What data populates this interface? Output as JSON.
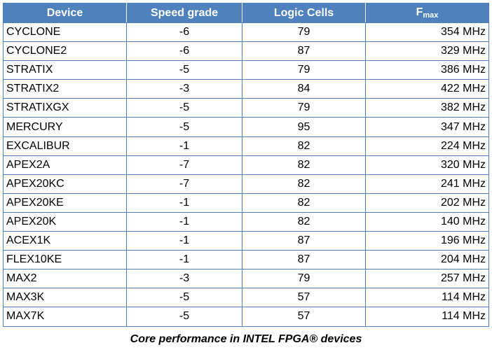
{
  "table": {
    "headers": {
      "device": "Device",
      "speed": "Speed grade",
      "cells": "Logic Cells",
      "fmax_main": "F",
      "fmax_sub": "max"
    },
    "rows": [
      {
        "device": "CYCLONE",
        "speed": "-6",
        "cells": "79",
        "fmax": "354 MHz"
      },
      {
        "device": "CYCLONE2",
        "speed": "-6",
        "cells": "87",
        "fmax": "329 MHz"
      },
      {
        "device": "STRATIX",
        "speed": "-5",
        "cells": "79",
        "fmax": "386 MHz"
      },
      {
        "device": "STRATIX2",
        "speed": "-3",
        "cells": "84",
        "fmax": "422 MHz"
      },
      {
        "device": "STRATIXGX",
        "speed": "-5",
        "cells": "79",
        "fmax": "382 MHz"
      },
      {
        "device": "MERCURY",
        "speed": "-5",
        "cells": "95",
        "fmax": "347 MHz"
      },
      {
        "device": "EXCALIBUR",
        "speed": "-1",
        "cells": "82",
        "fmax": "224 MHz"
      },
      {
        "device": "APEX2A",
        "speed": "-7",
        "cells": "82",
        "fmax": "320 MHz"
      },
      {
        "device": "APEX20KC",
        "speed": "-7",
        "cells": "82",
        "fmax": "241 MHz"
      },
      {
        "device": "APEX20KE",
        "speed": "-1",
        "cells": "82",
        "fmax": "202 MHz"
      },
      {
        "device": "APEX20K",
        "speed": "-1",
        "cells": "82",
        "fmax": "140 MHz"
      },
      {
        "device": "ACEX1K",
        "speed": "-1",
        "cells": "87",
        "fmax": "196 MHz"
      },
      {
        "device": "FLEX10KE",
        "speed": "-1",
        "cells": "87",
        "fmax": "204 MHz"
      },
      {
        "device": "MAX2",
        "speed": "-3",
        "cells": "79",
        "fmax": "257 MHz"
      },
      {
        "device": "MAX3K",
        "speed": "-5",
        "cells": "57",
        "fmax": "114 MHz"
      },
      {
        "device": "MAX7K",
        "speed": "-5",
        "cells": "57",
        "fmax": "114 MHz"
      }
    ]
  },
  "caption": "Core performance in INTEL FPGA® devices"
}
